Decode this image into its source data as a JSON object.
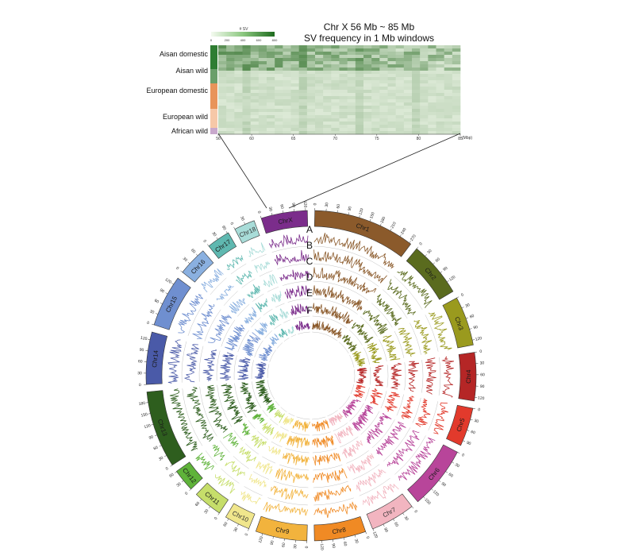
{
  "heatmap": {
    "title_line1": "Chr X 56 Mb ~ 85 Mb",
    "title_line2": "SV frequency in 1 Mb windows",
    "legend_title": "# SV",
    "legend_ticks": [
      "0",
      "200",
      "400",
      "600",
      "800"
    ],
    "groups": [
      {
        "label": "Aisan domestic",
        "color": "#2e7d32"
      },
      {
        "label": "Aisan wild",
        "color": "#6a9f6a"
      },
      {
        "label": "European domestic",
        "color": "#e8945a"
      },
      {
        "label": "European wild",
        "color": "#f6c8a8"
      },
      {
        "label": "African wild",
        "color": "#c8a8cc"
      }
    ],
    "axis_ticks": [
      "56",
      "60",
      "65",
      "70",
      "75",
      "80",
      "85"
    ],
    "axis_unit": "(Mbp)"
  },
  "circos": {
    "track_labels": [
      "A",
      "B",
      "C",
      "D",
      "E",
      "F"
    ],
    "chromosomes": [
      {
        "name": "Chr1",
        "length": 275,
        "color": "#8b5a2b",
        "ticks": [
          "0",
          "30",
          "60",
          "90",
          "120",
          "150",
          "180",
          "210",
          "240",
          "270"
        ]
      },
      {
        "name": "Chr2",
        "length": 150,
        "color": "#5a6b1e",
        "ticks": [
          "0",
          "30",
          "60",
          "90",
          "120"
        ]
      },
      {
        "name": "Chr3",
        "length": 133,
        "color": "#9a9a1e",
        "ticks": [
          "0",
          "30",
          "60",
          "90",
          "120"
        ]
      },
      {
        "name": "Chr4",
        "length": 130,
        "color": "#b52626",
        "ticks": [
          "0",
          "30",
          "60",
          "90",
          "120"
        ]
      },
      {
        "name": "Chr5",
        "length": 104,
        "color": "#e23a2c",
        "ticks": [
          "0",
          "30",
          "60",
          "90"
        ]
      },
      {
        "name": "Chr6",
        "length": 170,
        "color": "#b8459a",
        "ticks": [
          "0",
          "30",
          "60",
          "90",
          "120",
          "150"
        ]
      },
      {
        "name": "Chr7",
        "length": 121,
        "color": "#f2b5c0",
        "ticks": [
          "0",
          "30",
          "60",
          "90",
          "120"
        ]
      },
      {
        "name": "Chr8",
        "length": 139,
        "color": "#f08a24",
        "ticks": [
          "0",
          "30",
          "60",
          "90",
          "120"
        ]
      },
      {
        "name": "Chr9",
        "length": 139,
        "color": "#f2b33d",
        "ticks": [
          "0",
          "30",
          "60",
          "90",
          "120"
        ]
      },
      {
        "name": "Chr10",
        "length": 69,
        "color": "#f0e68c",
        "ticks": [
          "0",
          "30",
          "60"
        ]
      },
      {
        "name": "Chr11",
        "length": 79,
        "color": "#c6de6a",
        "ticks": [
          "0",
          "30",
          "60"
        ]
      },
      {
        "name": "Chr12",
        "length": 61,
        "color": "#5fb33a",
        "ticks": [
          "0",
          "30",
          "60"
        ]
      },
      {
        "name": "Chr13",
        "length": 208,
        "color": "#2e5e1e",
        "ticks": [
          "0",
          "30",
          "60",
          "90",
          "120",
          "150",
          "180"
        ]
      },
      {
        "name": "Chr14",
        "length": 141,
        "color": "#4a5aa8",
        "ticks": [
          "0",
          "30",
          "60",
          "90",
          "120"
        ]
      },
      {
        "name": "Chr15",
        "length": 140,
        "color": "#6f8fd0",
        "ticks": [
          "0",
          "30",
          "60",
          "90",
          "120"
        ]
      },
      {
        "name": "Chr16",
        "length": 79,
        "color": "#8ab0e0",
        "ticks": [
          "0",
          "30",
          "60"
        ]
      },
      {
        "name": "Chr17",
        "length": 63,
        "color": "#5fb8b0",
        "ticks": [
          "0",
          "30",
          "60"
        ]
      },
      {
        "name": "Chr18",
        "length": 56,
        "color": "#a8dcd8",
        "ticks": [
          "0",
          "30"
        ]
      },
      {
        "name": "ChrX",
        "length": 125,
        "color": "#7b2d8b",
        "ticks": [
          "0",
          "30",
          "60",
          "90",
          "120"
        ]
      }
    ]
  }
}
